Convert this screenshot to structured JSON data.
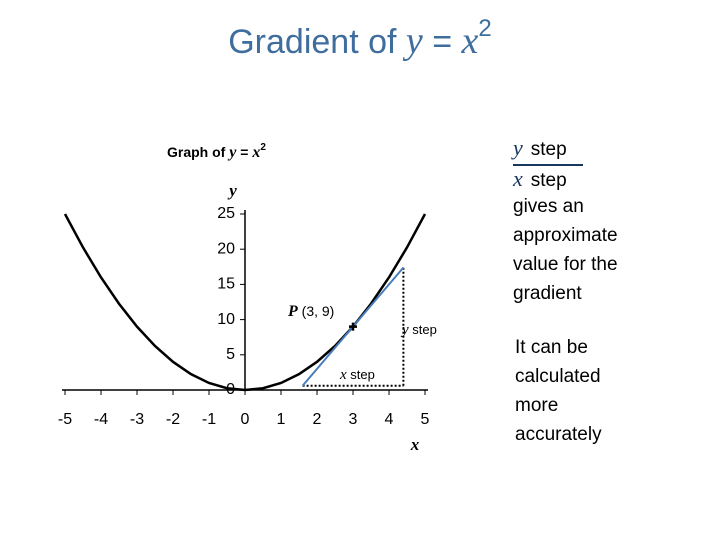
{
  "title": [
    "Gradient of ",
    "y",
    " = ",
    "x",
    "2"
  ],
  "chart_data": {
    "type": "line",
    "title": [
      "Graph of ",
      "y",
      " = ",
      "x",
      "2"
    ],
    "x_label": "x",
    "y_label": "y",
    "x": [
      -5,
      -4.5,
      -4,
      -3.5,
      -3,
      -2.5,
      -2,
      -1.5,
      -1,
      -0.5,
      0,
      0.5,
      1,
      1.5,
      2,
      2.5,
      3,
      3.5,
      4,
      4.5,
      5
    ],
    "values": [
      25,
      20.25,
      16,
      12.25,
      9,
      6.25,
      4,
      2.25,
      1,
      0.25,
      0,
      0.25,
      1,
      2.25,
      4,
      6.25,
      9,
      12.25,
      16,
      20.25,
      25
    ],
    "color": "#000000",
    "xlim": [
      -5,
      5
    ],
    "ylim": [
      0,
      25
    ],
    "xticks": [
      -5,
      -4,
      -3,
      -2,
      -1,
      0,
      1,
      2,
      3,
      4,
      5
    ],
    "yticks": [
      0,
      5,
      10,
      15,
      20,
      25
    ],
    "tangent": {
      "x": [
        1.6,
        4.4
      ],
      "y": [
        0.6,
        17.4
      ],
      "color": "#4a7ebb"
    },
    "point": {
      "x": 3,
      "y": 9,
      "label": [
        "P",
        " (3, 9)"
      ]
    },
    "x_step_label": [
      "x",
      " step"
    ],
    "y_step_label": [
      "y",
      " step"
    ]
  },
  "explanation": {
    "numerator": [
      "y",
      "step"
    ],
    "denominator": [
      "x",
      "step"
    ],
    "lines": [
      "gives an",
      "approximate",
      "value for the",
      "gradient"
    ]
  },
  "note": [
    "It can be",
    "calculated",
    "more",
    "accurately"
  ]
}
